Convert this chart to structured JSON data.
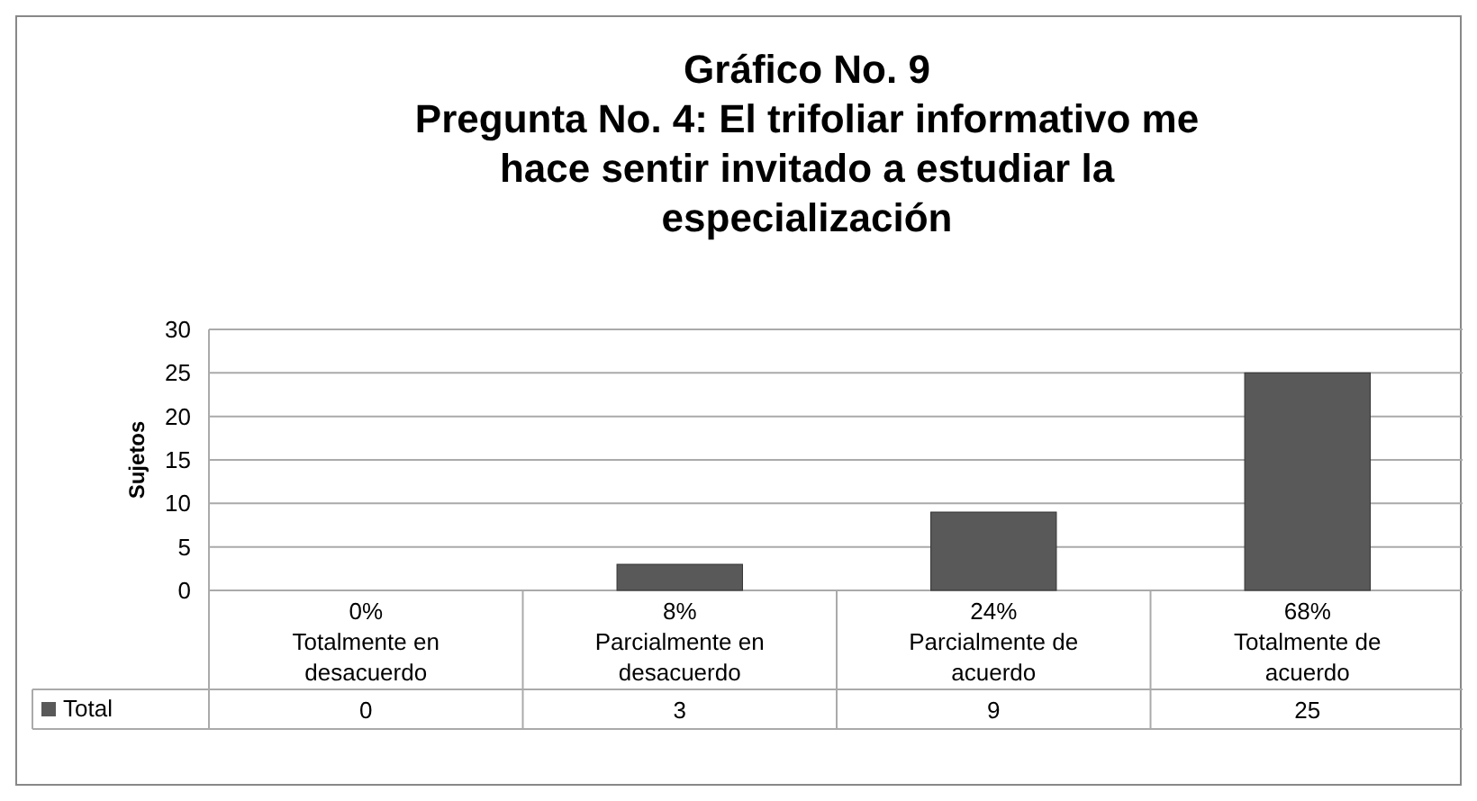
{
  "chart_data": {
    "type": "bar",
    "title": "Gráfico No. 9",
    "subtitle": "Pregunta No. 4: El trifoliar informativo me hace sentir invitado a estudiar la especialización",
    "ylabel": "Sujetos",
    "categories": [
      "Totalmente en desacuerdo",
      "Parcialmente en desacuerdo",
      "Parcialmente de acuerdo",
      "Totalmente de acuerdo"
    ],
    "series": [
      {
        "name": "Total",
        "color": "#595959",
        "values": [
          0,
          3,
          9,
          25
        ]
      }
    ],
    "ylim": [
      0,
      30
    ],
    "yticks": [
      0,
      5,
      10,
      15,
      20,
      25,
      30
    ],
    "grid": "y",
    "data_labels": true,
    "annotations": [
      "0%",
      "8%",
      "24%",
      "68%"
    ]
  }
}
